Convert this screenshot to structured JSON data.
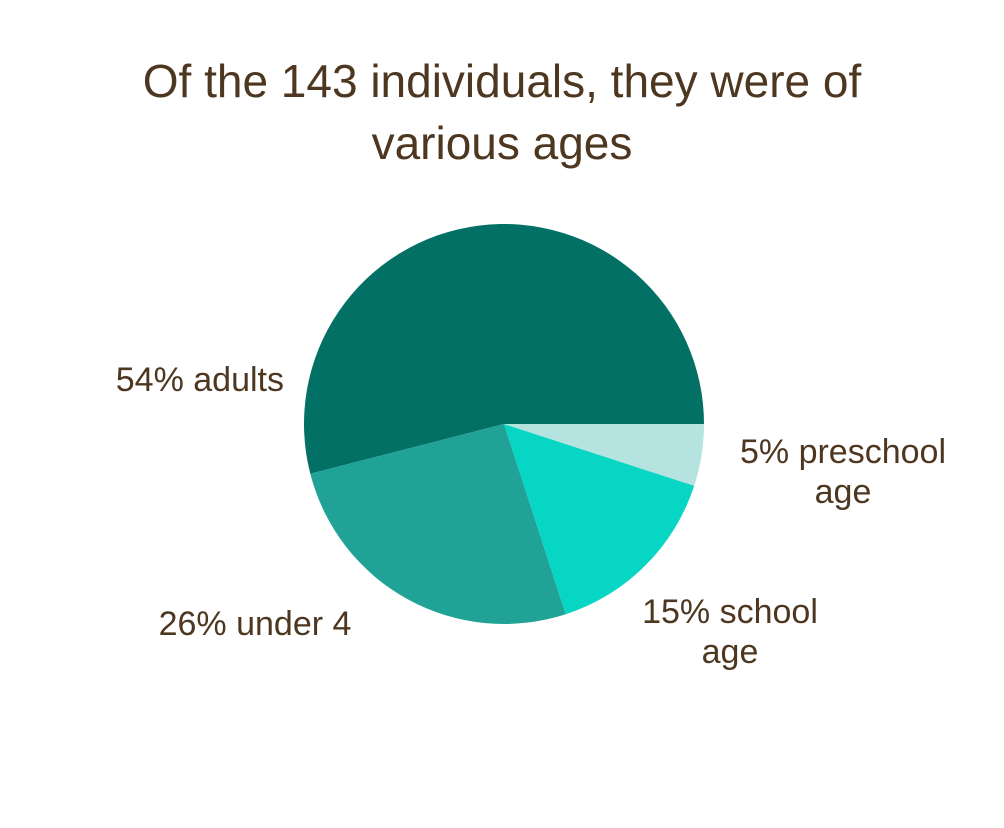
{
  "chart_data": {
    "type": "pie",
    "title": "Of the 143 individuals, they were of various ages",
    "categories": [
      "54% adults",
      "26% under 4",
      "15% school age",
      "5% preschool age"
    ],
    "values": [
      54,
      26,
      15,
      5
    ],
    "colors": [
      "#037066",
      "#20a396",
      "#06d6c3",
      "#b5e3df"
    ]
  }
}
